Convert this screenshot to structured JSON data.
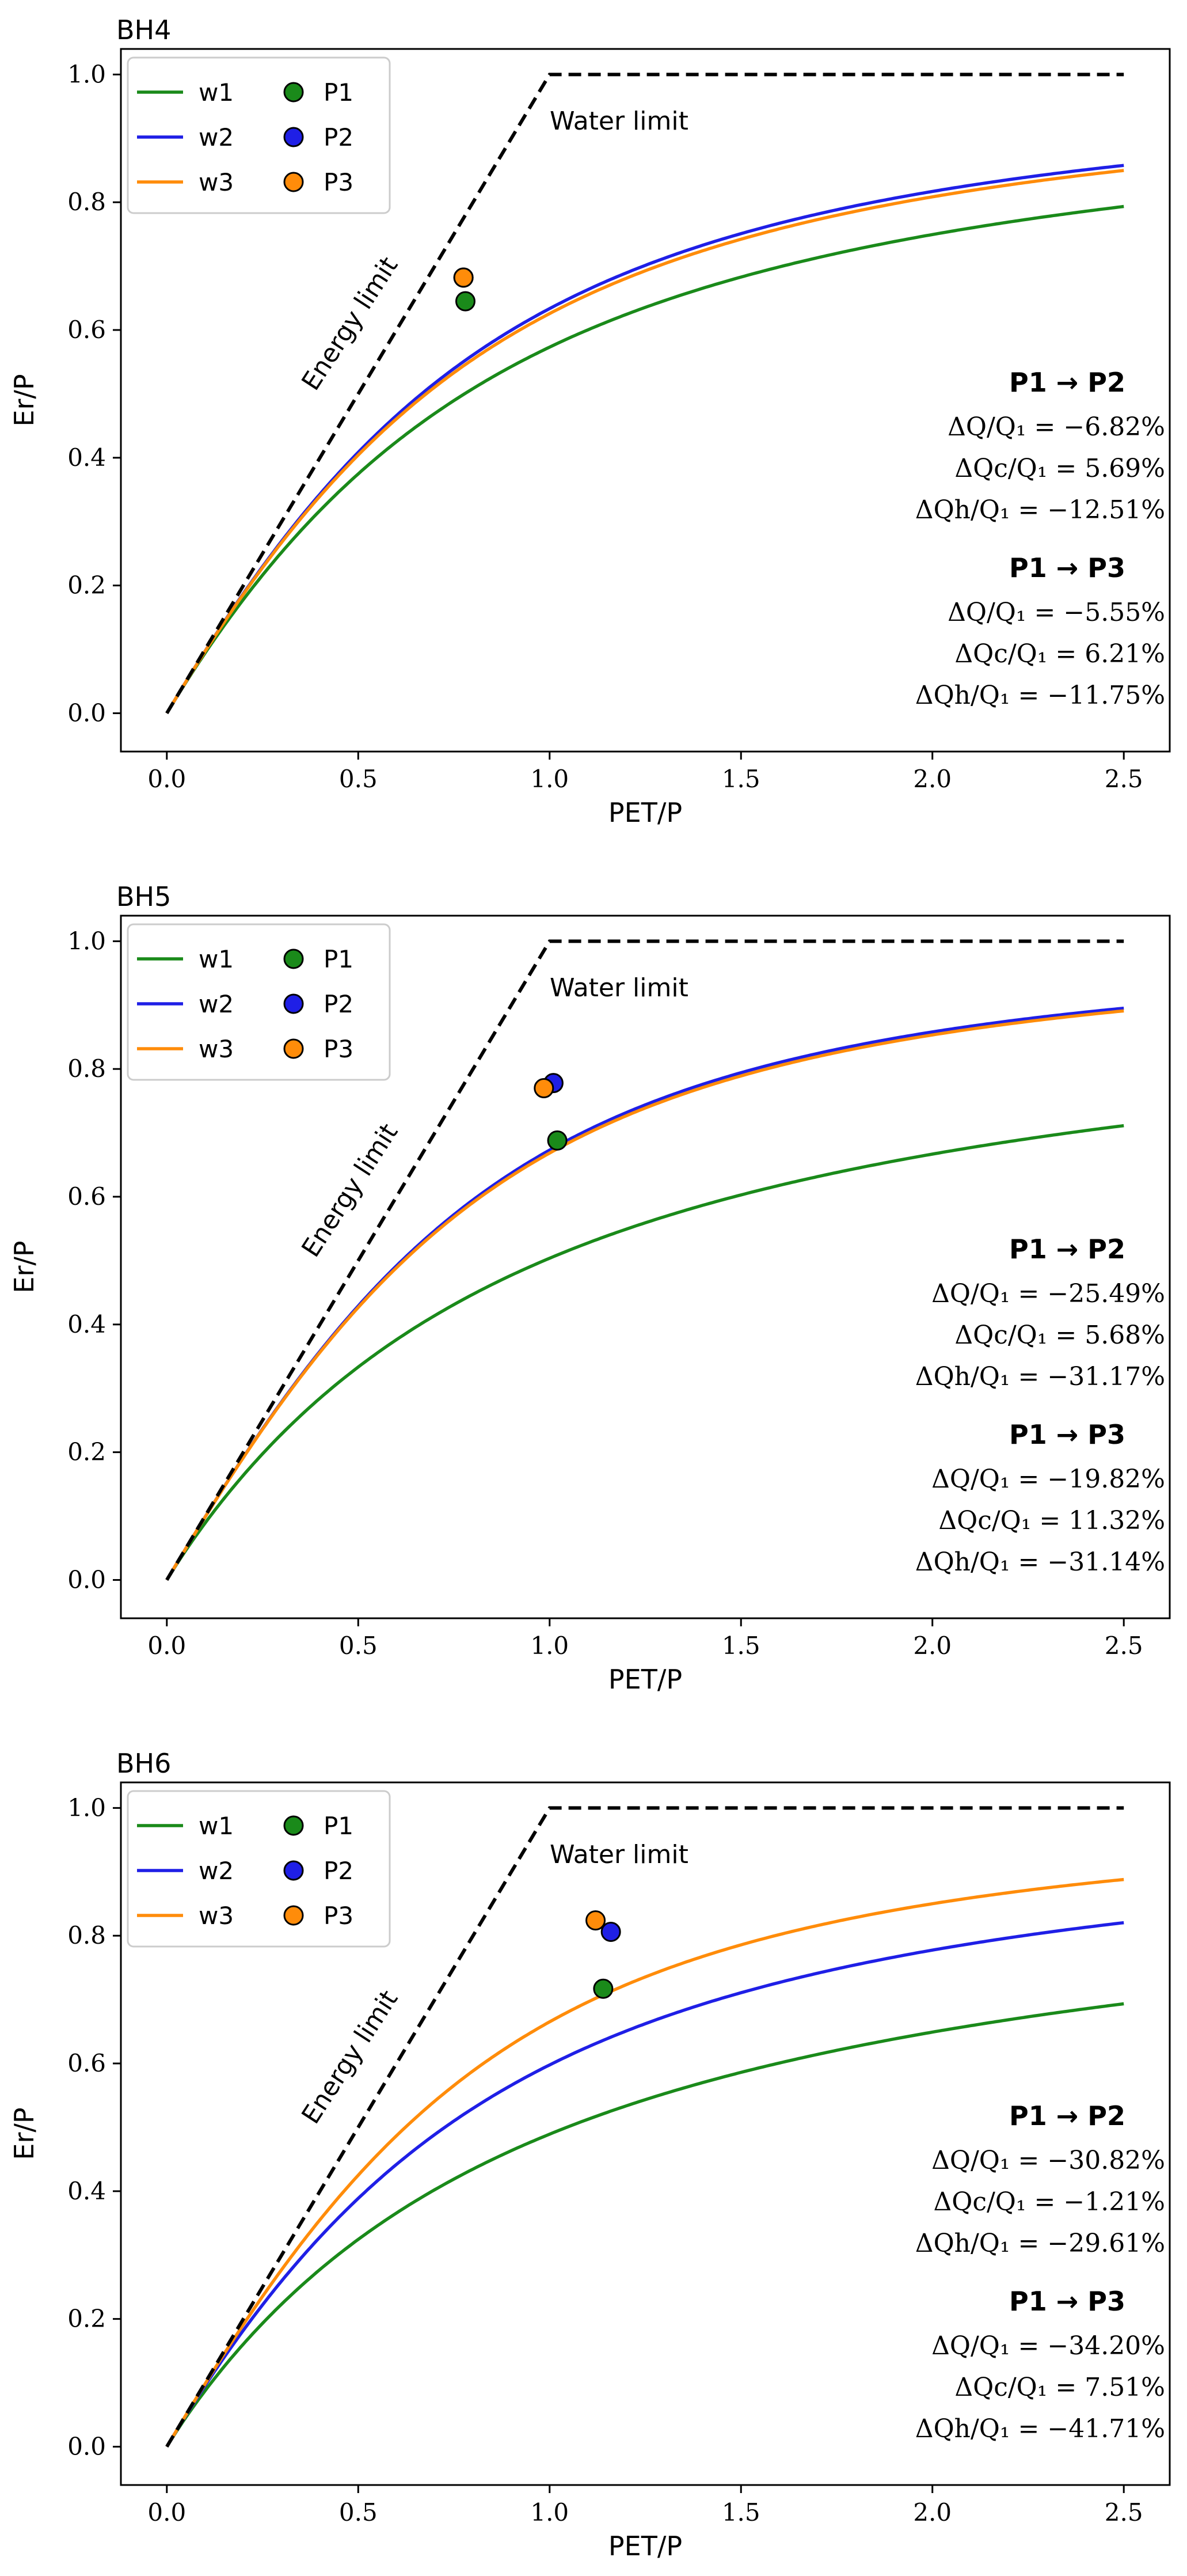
{
  "chart_data": [
    {
      "type": "line",
      "title": "BH4",
      "xlabel": "PET/P",
      "ylabel": "Er/P",
      "xlim": [
        -0.12,
        2.62
      ],
      "ylim": [
        -0.06,
        1.04
      ],
      "xticks": [
        "0.0",
        "0.5",
        "1.0",
        "1.5",
        "2.0",
        "2.5"
      ],
      "yticks": [
        "0.0",
        "0.2",
        "0.4",
        "0.6",
        "0.8",
        "1.0"
      ],
      "grid": false,
      "legend_position": "top-left",
      "limit_labels": {
        "energy": "Energy limit",
        "water": "Water limit"
      },
      "series": [
        {
          "name": "w1",
          "color": "#1a8a1a",
          "w": 1.95
        },
        {
          "name": "w2",
          "color": "#1f1fe6",
          "w": 2.22
        },
        {
          "name": "w3",
          "color": "#ff8c0a",
          "w": 2.18
        }
      ],
      "points": [
        {
          "name": "P1",
          "color": "#1a8a1a",
          "x": 0.78,
          "y": 0.645
        },
        {
          "name": "P2",
          "color": "#1f1fe6",
          "x": 0.775,
          "y": 0.682
        },
        {
          "name": "P3",
          "color": "#ff8c0a",
          "x": 0.775,
          "y": 0.682
        }
      ],
      "annotations": [
        {
          "header": "P1 → P2",
          "lines": [
            "ΔQ/Q₁ = −6.82%",
            "ΔQc/Q₁ = 5.69%",
            "ΔQh/Q₁ = −12.51%"
          ]
        },
        {
          "header": "P1 → P3",
          "lines": [
            "ΔQ/Q₁ = −5.55%",
            "ΔQc/Q₁ = 6.21%",
            "ΔQh/Q₁ = −11.75%"
          ]
        }
      ]
    },
    {
      "type": "line",
      "title": "BH5",
      "xlabel": "PET/P",
      "ylabel": "Er/P",
      "xlim": [
        -0.12,
        2.62
      ],
      "ylim": [
        -0.06,
        1.04
      ],
      "xticks": [
        "0.0",
        "0.5",
        "1.0",
        "1.5",
        "2.0",
        "2.5"
      ],
      "yticks": [
        "0.0",
        "0.2",
        "0.4",
        "0.6",
        "0.8",
        "1.0"
      ],
      "grid": false,
      "legend_position": "top-left",
      "limit_labels": {
        "energy": "Energy limit",
        "water": "Water limit"
      },
      "series": [
        {
          "name": "w1",
          "color": "#1a8a1a",
          "w": 1.72
        },
        {
          "name": "w2",
          "color": "#1f1fe6",
          "w": 2.45
        },
        {
          "name": "w3",
          "color": "#ff8c0a",
          "w": 2.42
        }
      ],
      "points": [
        {
          "name": "P1",
          "color": "#1a8a1a",
          "x": 1.02,
          "y": 0.688
        },
        {
          "name": "P2",
          "color": "#1f1fe6",
          "x": 1.01,
          "y": 0.778
        },
        {
          "name": "P3",
          "color": "#ff8c0a",
          "x": 0.985,
          "y": 0.77
        }
      ],
      "annotations": [
        {
          "header": "P1 → P2",
          "lines": [
            "ΔQ/Q₁ = −25.49%",
            "ΔQc/Q₁ = 5.68%",
            "ΔQh/Q₁ = −31.17%"
          ]
        },
        {
          "header": "P1 → P3",
          "lines": [
            "ΔQ/Q₁ = −19.82%",
            "ΔQc/Q₁ = 11.32%",
            "ΔQh/Q₁ = −31.14%"
          ]
        }
      ]
    },
    {
      "type": "line",
      "title": "BH6",
      "xlabel": "PET/P",
      "ylabel": "Er/P",
      "xlim": [
        -0.12,
        2.62
      ],
      "ylim": [
        -0.06,
        1.04
      ],
      "xticks": [
        "0.0",
        "0.5",
        "1.0",
        "1.5",
        "2.0",
        "2.5"
      ],
      "yticks": [
        "0.0",
        "0.2",
        "0.4",
        "0.6",
        "0.8",
        "1.0"
      ],
      "grid": false,
      "legend_position": "top-left",
      "limit_labels": {
        "energy": "Energy limit",
        "water": "Water limit"
      },
      "series": [
        {
          "name": "w1",
          "color": "#1a8a1a",
          "w": 1.68
        },
        {
          "name": "w2",
          "color": "#1f1fe6",
          "w": 2.05
        },
        {
          "name": "w3",
          "color": "#ff8c0a",
          "w": 2.4
        }
      ],
      "points": [
        {
          "name": "P1",
          "color": "#1a8a1a",
          "x": 1.14,
          "y": 0.717
        },
        {
          "name": "P2",
          "color": "#1f1fe6",
          "x": 1.16,
          "y": 0.806
        },
        {
          "name": "P3",
          "color": "#ff8c0a",
          "x": 1.12,
          "y": 0.824
        }
      ],
      "annotations": [
        {
          "header": "P1 → P2",
          "lines": [
            "ΔQ/Q₁ = −30.82%",
            "ΔQc/Q₁ = −1.21%",
            "ΔQh/Q₁ = −29.61%"
          ]
        },
        {
          "header": "P1 → P3",
          "lines": [
            "ΔQ/Q₁ = −34.20%",
            "ΔQc/Q₁ = 7.51%",
            "ΔQh/Q₁ = −41.71%"
          ]
        }
      ]
    }
  ]
}
